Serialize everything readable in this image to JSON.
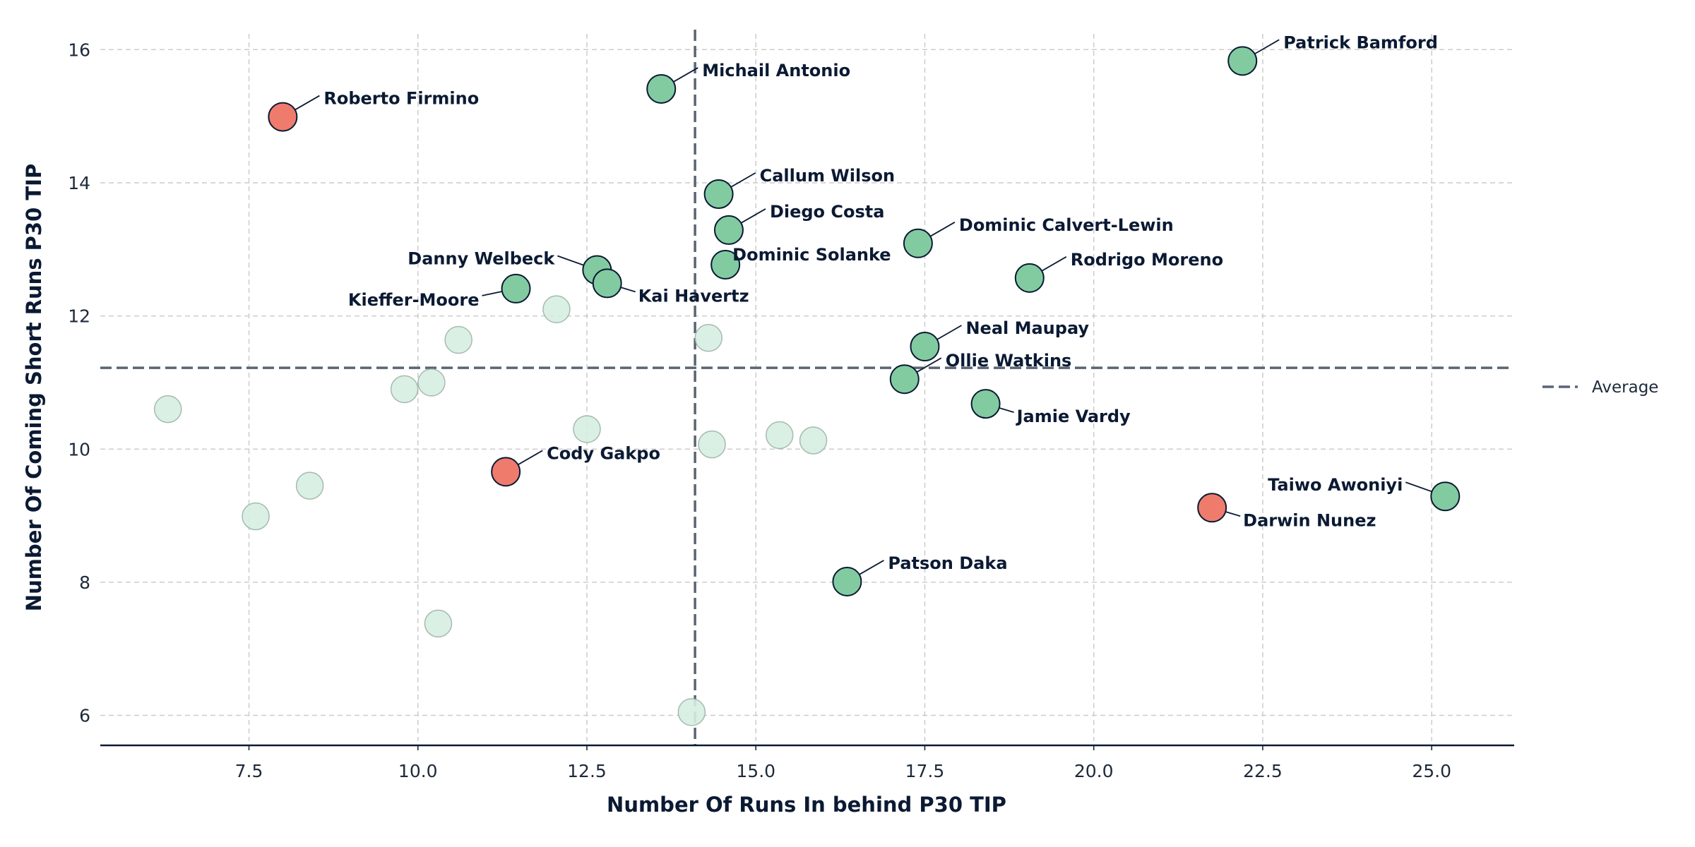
{
  "chart_data": {
    "type": "scatter",
    "xlabel": "Number Of Runs In behind P30 TIP",
    "ylabel": "Number Of Coming Short Runs P30 TIP",
    "xlim": [
      5.3,
      26.2
    ],
    "ylim": [
      5.55,
      16.3
    ],
    "x_ticks": [
      7.5,
      10.0,
      12.5,
      15.0,
      17.5,
      20.0,
      22.5,
      25.0
    ],
    "x_tick_labels": [
      "7.5",
      "10.0",
      "12.5",
      "15.0",
      "17.5",
      "20.0",
      "22.5",
      "25.0"
    ],
    "y_ticks": [
      6,
      8,
      10,
      12,
      14,
      16
    ],
    "y_tick_labels": [
      "6",
      "8",
      "10",
      "12",
      "14",
      "16"
    ],
    "grid": true,
    "legend": {
      "position": "right",
      "entries": [
        {
          "label": "Average",
          "style": "dashed-line"
        }
      ]
    },
    "average": {
      "x": 14.1,
      "y": 11.22
    },
    "colors": {
      "above": "#82cba1",
      "below": "#ef7b6d",
      "background": "#d7efe2",
      "average_line": "#5a6475",
      "text": "#0b1a33"
    },
    "labeled_points": [
      {
        "name": "Patrick Bamford",
        "x": 22.2,
        "y": 15.83,
        "color": "above",
        "label_side": "right-up"
      },
      {
        "name": "Michail Antonio",
        "x": 13.6,
        "y": 15.41,
        "color": "above",
        "label_side": "right-up"
      },
      {
        "name": "Roberto Firmino",
        "x": 8.0,
        "y": 14.99,
        "color": "below",
        "label_side": "right-up"
      },
      {
        "name": "Callum Wilson",
        "x": 14.45,
        "y": 13.83,
        "color": "above",
        "label_side": "right-up"
      },
      {
        "name": "Diego Costa",
        "x": 14.6,
        "y": 13.29,
        "color": "above",
        "label_side": "right-up"
      },
      {
        "name": "Dominic Calvert-Lewin",
        "x": 17.4,
        "y": 13.09,
        "color": "above",
        "label_side": "right-up"
      },
      {
        "name": "Danny Welbeck",
        "x": 12.65,
        "y": 12.69,
        "color": "above",
        "label_side": "left-up"
      },
      {
        "name": "Dominic Solanke",
        "x": 14.55,
        "y": 12.77,
        "color": "above",
        "label_side": "right"
      },
      {
        "name": "Rodrigo Moreno",
        "x": 19.05,
        "y": 12.57,
        "color": "above",
        "label_side": "right-up"
      },
      {
        "name": "Kai Havertz",
        "x": 12.8,
        "y": 12.49,
        "color": "above",
        "label_side": "right-down"
      },
      {
        "name": "Kieffer-Moore",
        "x": 11.45,
        "y": 12.41,
        "color": "above",
        "label_side": "left-down"
      },
      {
        "name": "Neal Maupay",
        "x": 17.5,
        "y": 11.54,
        "color": "above",
        "label_side": "right-up"
      },
      {
        "name": "Ollie Watkins",
        "x": 17.2,
        "y": 11.05,
        "color": "above",
        "label_side": "right-up"
      },
      {
        "name": "Jamie Vardy",
        "x": 18.4,
        "y": 10.68,
        "color": "above",
        "label_side": "right-down"
      },
      {
        "name": "Cody Gakpo",
        "x": 11.3,
        "y": 9.66,
        "color": "below",
        "label_side": "right-up"
      },
      {
        "name": "Taiwo Awoniyi",
        "x": 25.2,
        "y": 9.29,
        "color": "above",
        "label_side": "left-up"
      },
      {
        "name": "Darwin Nunez",
        "x": 21.75,
        "y": 9.12,
        "color": "below",
        "label_side": "right-down"
      },
      {
        "name": "Patson Daka",
        "x": 16.35,
        "y": 8.01,
        "color": "above",
        "label_side": "right-up"
      }
    ],
    "background_points": [
      {
        "x": 6.3,
        "y": 10.6
      },
      {
        "x": 7.6,
        "y": 8.99
      },
      {
        "x": 8.4,
        "y": 9.45
      },
      {
        "x": 9.8,
        "y": 10.9
      },
      {
        "x": 10.2,
        "y": 11.0
      },
      {
        "x": 10.6,
        "y": 11.64
      },
      {
        "x": 10.3,
        "y": 7.38
      },
      {
        "x": 12.05,
        "y": 12.1
      },
      {
        "x": 12.5,
        "y": 10.3
      },
      {
        "x": 14.3,
        "y": 11.67
      },
      {
        "x": 14.35,
        "y": 10.07
      },
      {
        "x": 14.05,
        "y": 6.05
      },
      {
        "x": 15.35,
        "y": 10.21
      },
      {
        "x": 15.85,
        "y": 10.13
      }
    ]
  }
}
